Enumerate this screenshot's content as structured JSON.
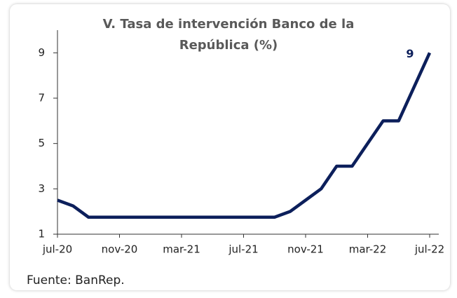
{
  "chart_data": {
    "type": "line",
    "title": "V. Tasa de intervención Banco de la República (%)",
    "categories": [
      "jul-20",
      null,
      null,
      null,
      "nov-20",
      null,
      null,
      null,
      "mar-21",
      null,
      null,
      null,
      "jul-21",
      null,
      null,
      null,
      "nov-21",
      null,
      null,
      null,
      "mar-22",
      null,
      null,
      null,
      "jul-22"
    ],
    "values": [
      2.5,
      2.25,
      1.75,
      1.75,
      1.75,
      1.75,
      1.75,
      1.75,
      1.75,
      1.75,
      1.75,
      1.75,
      1.75,
      1.75,
      1.75,
      2.0,
      2.5,
      3.0,
      4.0,
      4.0,
      5.0,
      6.0,
      6.0,
      7.5,
      9.0
    ],
    "color": "#0c1f5b",
    "ylim": [
      1,
      10
    ],
    "yticks": [
      1,
      3,
      5,
      7,
      9
    ],
    "grid": false,
    "source": "Fuente: BanRep."
  }
}
